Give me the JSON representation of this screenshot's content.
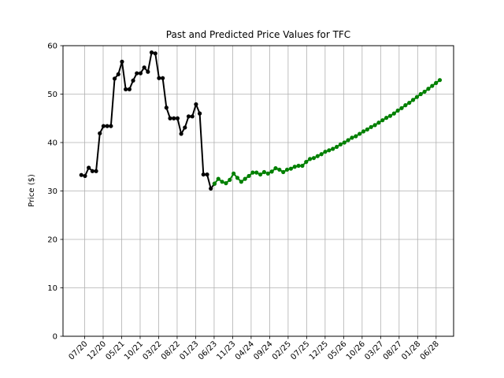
{
  "chart_data": {
    "type": "line",
    "title": "Past and Predicted Price Values for TFC",
    "xlabel": "",
    "ylabel": "Price ($)",
    "ylim": [
      0,
      60
    ],
    "yticks": [
      0,
      10,
      20,
      30,
      40,
      50,
      60
    ],
    "xticks": [
      "07/20",
      "12/20",
      "05/21",
      "10/21",
      "03/22",
      "08/22",
      "01/23",
      "06/23",
      "11/23",
      "04/24",
      "09/24",
      "02/25",
      "07/25",
      "12/25",
      "05/26",
      "10/26",
      "03/27",
      "08/27",
      "01/28",
      "06/28"
    ],
    "grid": true,
    "series": [
      {
        "color": "#000000",
        "values": [
          33.3,
          33.1,
          34.8,
          34.1,
          34.1,
          41.9,
          43.4,
          43.4,
          43.4,
          53.2,
          54.1,
          56.7,
          51.0,
          51.0,
          52.8,
          54.3,
          54.3,
          55.5,
          54.6,
          58.6,
          58.4,
          53.3,
          53.3,
          47.2,
          45.0,
          45.0,
          45.0,
          41.8,
          43.1,
          45.4,
          45.4,
          47.9,
          46.0,
          33.4,
          33.4,
          30.5,
          31.5
        ]
      },
      {
        "color": "#008000",
        "values": [
          31.5,
          32.5,
          31.9,
          31.6,
          32.3,
          33.6,
          32.7,
          31.9,
          32.5,
          33.1,
          33.8,
          33.8,
          33.4,
          33.9,
          33.6,
          34.0,
          34.7,
          34.4,
          33.9,
          34.4,
          34.6,
          35.0,
          35.2,
          35.2,
          36.0,
          36.6,
          36.8,
          37.2,
          37.6,
          38.1,
          38.4,
          38.7,
          39.1,
          39.6,
          40.0,
          40.5,
          41.0,
          41.3,
          41.8,
          42.3,
          42.7,
          43.2,
          43.6,
          44.1,
          44.6,
          45.1,
          45.5,
          46.0,
          46.6,
          47.1,
          47.7,
          48.2,
          48.8,
          49.4,
          50.0,
          50.5,
          51.1,
          51.7,
          52.3,
          52.9
        ]
      }
    ]
  }
}
